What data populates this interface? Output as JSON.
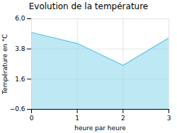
{
  "chart_data": {
    "type": "area",
    "title": "Evolution de la température",
    "xlabel": "heure par heure",
    "ylabel": "Température en °C",
    "x": [
      0,
      1,
      2,
      3
    ],
    "values": [
      5.0,
      4.2,
      2.6,
      4.6
    ],
    "color": "#72cce8",
    "xlim": [
      0,
      3
    ],
    "xticks": [
      0,
      1,
      2,
      3
    ],
    "ylim": [
      -0.6,
      6.0
    ],
    "yticks": [
      -0.6,
      1.6,
      3.8,
      {
        "value": 6.0,
        "label": "6.0"
      }
    ],
    "grid": true
  }
}
